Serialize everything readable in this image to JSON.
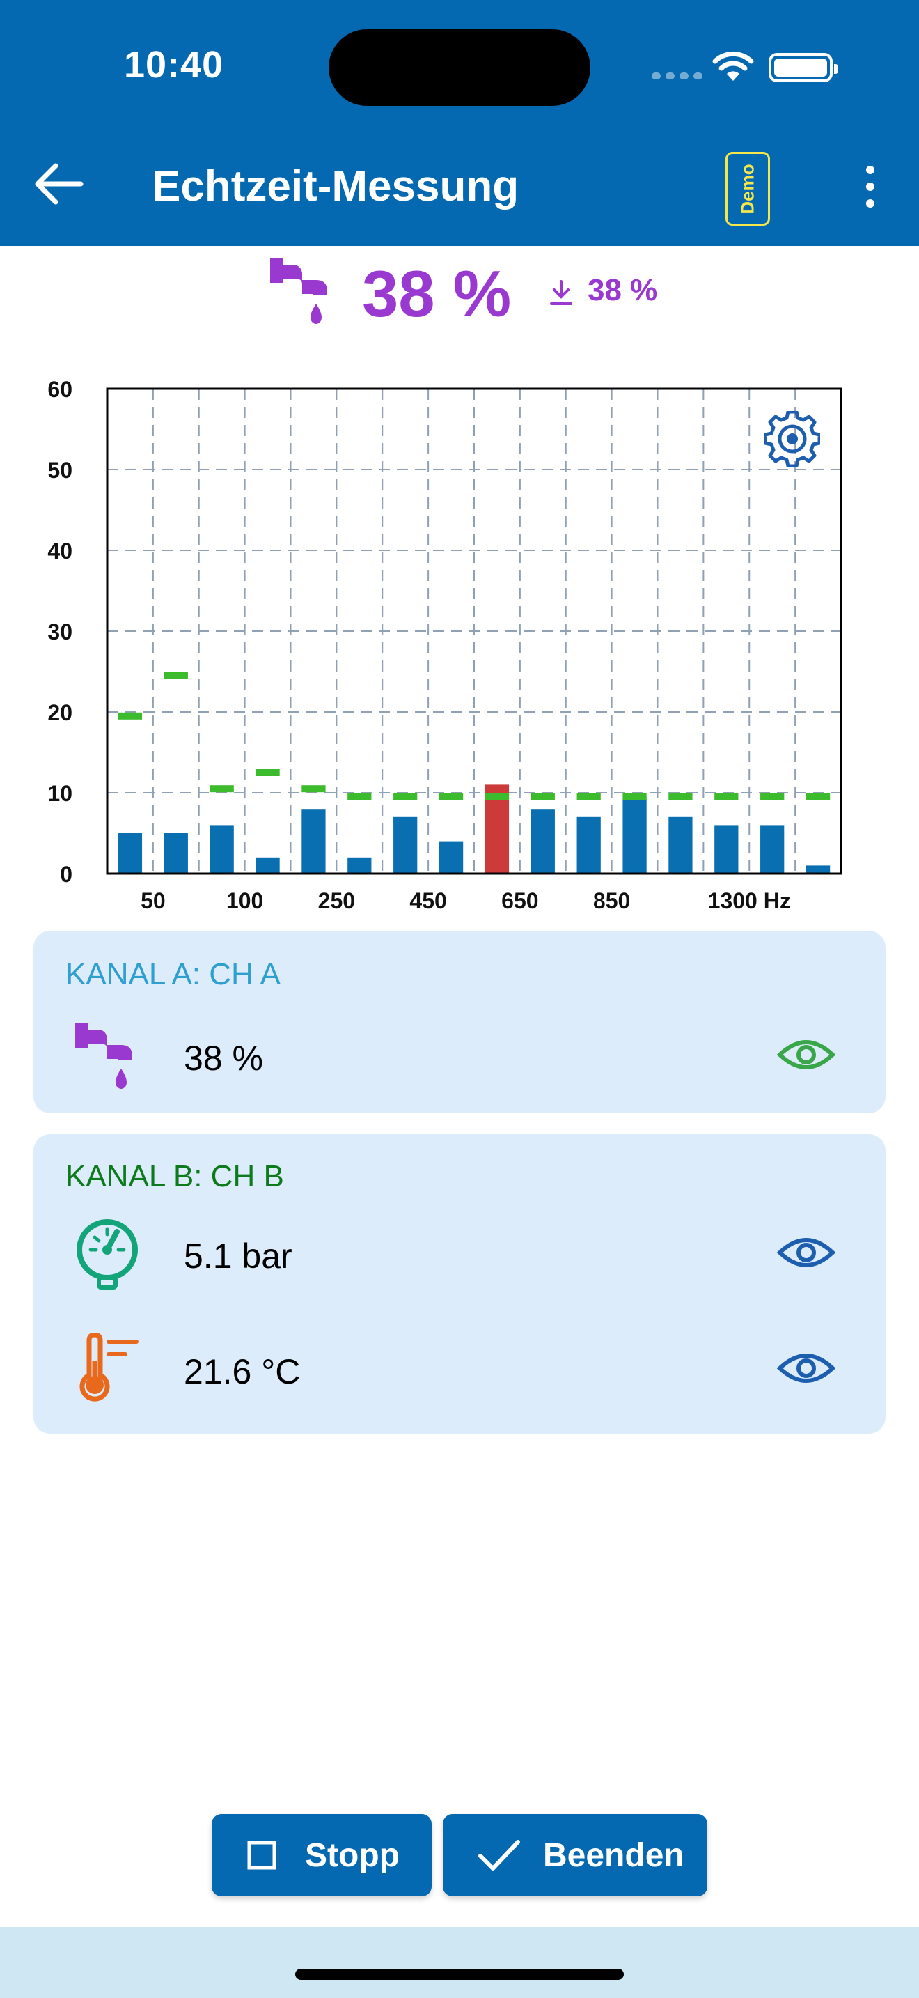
{
  "status_bar": {
    "time": "10:40"
  },
  "app_bar": {
    "title": "Echtzeit-Messung",
    "badge": "Demo"
  },
  "header": {
    "value": "38 %",
    "min_value": "38 %"
  },
  "chart_data": {
    "type": "bar",
    "x_tick_labels": [
      "50",
      "100",
      "250",
      "450",
      "650",
      "850",
      "1300 Hz"
    ],
    "y_ticks": [
      0,
      10,
      20,
      30,
      40,
      50,
      60
    ],
    "ylim": [
      0,
      60
    ],
    "grid": true,
    "values": [
      5,
      5,
      6,
      2,
      8,
      2,
      7,
      4,
      11,
      8,
      7,
      9.5,
      7,
      6,
      6,
      1
    ],
    "thresholds": [
      19.5,
      24.5,
      10.5,
      12.5,
      10.5,
      9.5,
      9.5,
      9.5,
      9.5,
      9.5,
      9.5,
      9.5,
      9.5,
      9.5,
      9.5,
      9.5
    ],
    "highlight_index": 8,
    "colors": {
      "bar": "#0a6fb0",
      "highlight": "#cc3a3a",
      "threshold": "#3cbc2c"
    }
  },
  "channels": [
    {
      "title": "KANAL A: CH A",
      "rows": [
        {
          "icon": "leak-faucet-icon",
          "value": "38 %",
          "eye_color": "#3aa64a"
        }
      ]
    },
    {
      "title": "KANAL B: CH B",
      "rows": [
        {
          "icon": "pressure-gauge-icon",
          "value": "5.1 bar",
          "eye_color": "#1d5fae"
        },
        {
          "icon": "thermometer-icon",
          "value": "21.6 °C",
          "eye_color": "#1d5fae"
        }
      ]
    }
  ],
  "buttons": {
    "stop": "Stopp",
    "finish": "Beenden"
  },
  "colors": {
    "primary": "#0469b1",
    "purple": "#9a39cf",
    "card_bg": "#ddecfb",
    "demo_yellow": "#f4e64b"
  }
}
